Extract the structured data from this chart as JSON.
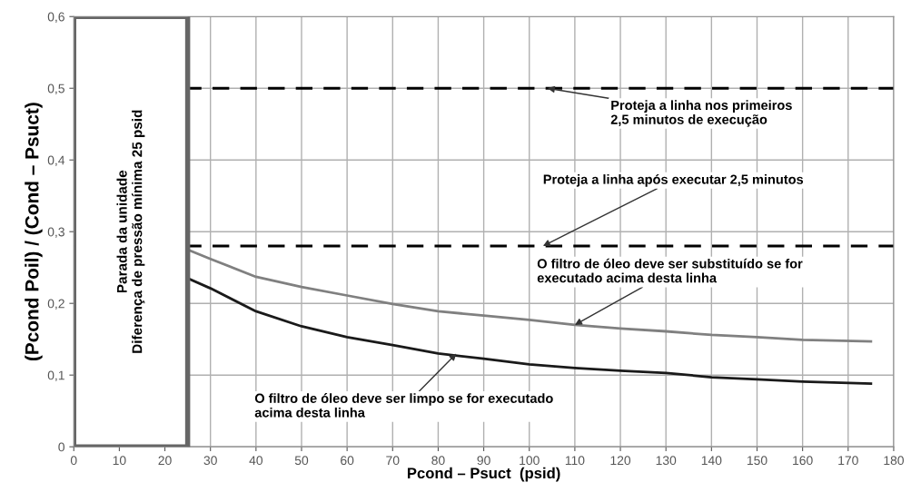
{
  "chart_data": {
    "type": "line",
    "xlabel": "Pcond – Psuct  (psid)",
    "ylabel": "(Pcond Poil) / (Cond – Psuct)",
    "xlim": [
      0,
      180
    ],
    "xticks": [
      0,
      10,
      20,
      30,
      40,
      50,
      60,
      70,
      80,
      90,
      100,
      110,
      120,
      130,
      140,
      150,
      160,
      170,
      180
    ],
    "ylim": [
      0,
      0.6
    ],
    "yticks": [
      {
        "value": 0,
        "label": "0"
      },
      {
        "value": 0.1,
        "label": "0,1"
      },
      {
        "value": 0.2,
        "label": "0,2"
      },
      {
        "value": 0.3,
        "label": "0,3"
      },
      {
        "value": 0.4,
        "label": "0,4"
      },
      {
        "value": 0.5,
        "label": "0,5"
      },
      {
        "value": 0.6,
        "label": "0,6"
      }
    ],
    "grid": true,
    "legend": false,
    "marker": "none",
    "line_style": "solid",
    "series": [
      {
        "color": "#808080",
        "x": [
          25,
          30,
          40,
          50,
          60,
          70,
          80,
          90,
          100,
          110,
          120,
          130,
          140,
          150,
          160,
          175
        ],
        "values": [
          0.275,
          0.262,
          0.237,
          0.223,
          0.211,
          0.199,
          0.189,
          0.183,
          0.177,
          0.17,
          0.165,
          0.161,
          0.156,
          0.153,
          0.149,
          0.147
        ]
      },
      {
        "color": "#1a1a1a",
        "x": [
          25,
          30,
          40,
          50,
          60,
          70,
          80,
          90,
          100,
          110,
          120,
          130,
          140,
          150,
          160,
          175
        ],
        "values": [
          0.235,
          0.221,
          0.189,
          0.168,
          0.153,
          0.142,
          0.13,
          0.123,
          0.115,
          0.11,
          0.106,
          0.103,
          0.097,
          0.094,
          0.091,
          0.088
        ]
      }
    ],
    "ref_lines": [
      {
        "axis": "y",
        "value": 0.5,
        "label": null,
        "color": "#000000",
        "line_style": "dashed"
      },
      {
        "axis": "y",
        "value": 0.28,
        "label": null,
        "color": "#000000",
        "line_style": "dashed"
      }
    ],
    "bands": [
      {
        "axis": "x",
        "from": 0,
        "to": 25,
        "label": "Parada da unidade\nDiferença de pressão mínima 25 psid",
        "color": "#ffffff"
      }
    ],
    "annotations": [
      {
        "text": "Proteja a linha nos primeiros\n2,5 minutos de execução",
        "x": 104,
        "y": 0.5
      },
      {
        "text": "Proteja a linha após executar 2,5 minutos",
        "x": 103,
        "y": 0.28
      },
      {
        "text": "O filtro de óleo deve ser substituído se for\nexecutado acima desta linha",
        "x": 110,
        "y": 0.17
      },
      {
        "text": "O filtro de óleo deve ser limpo se for executado\nacima desta linha",
        "x": 84,
        "y": 0.13
      }
    ]
  }
}
